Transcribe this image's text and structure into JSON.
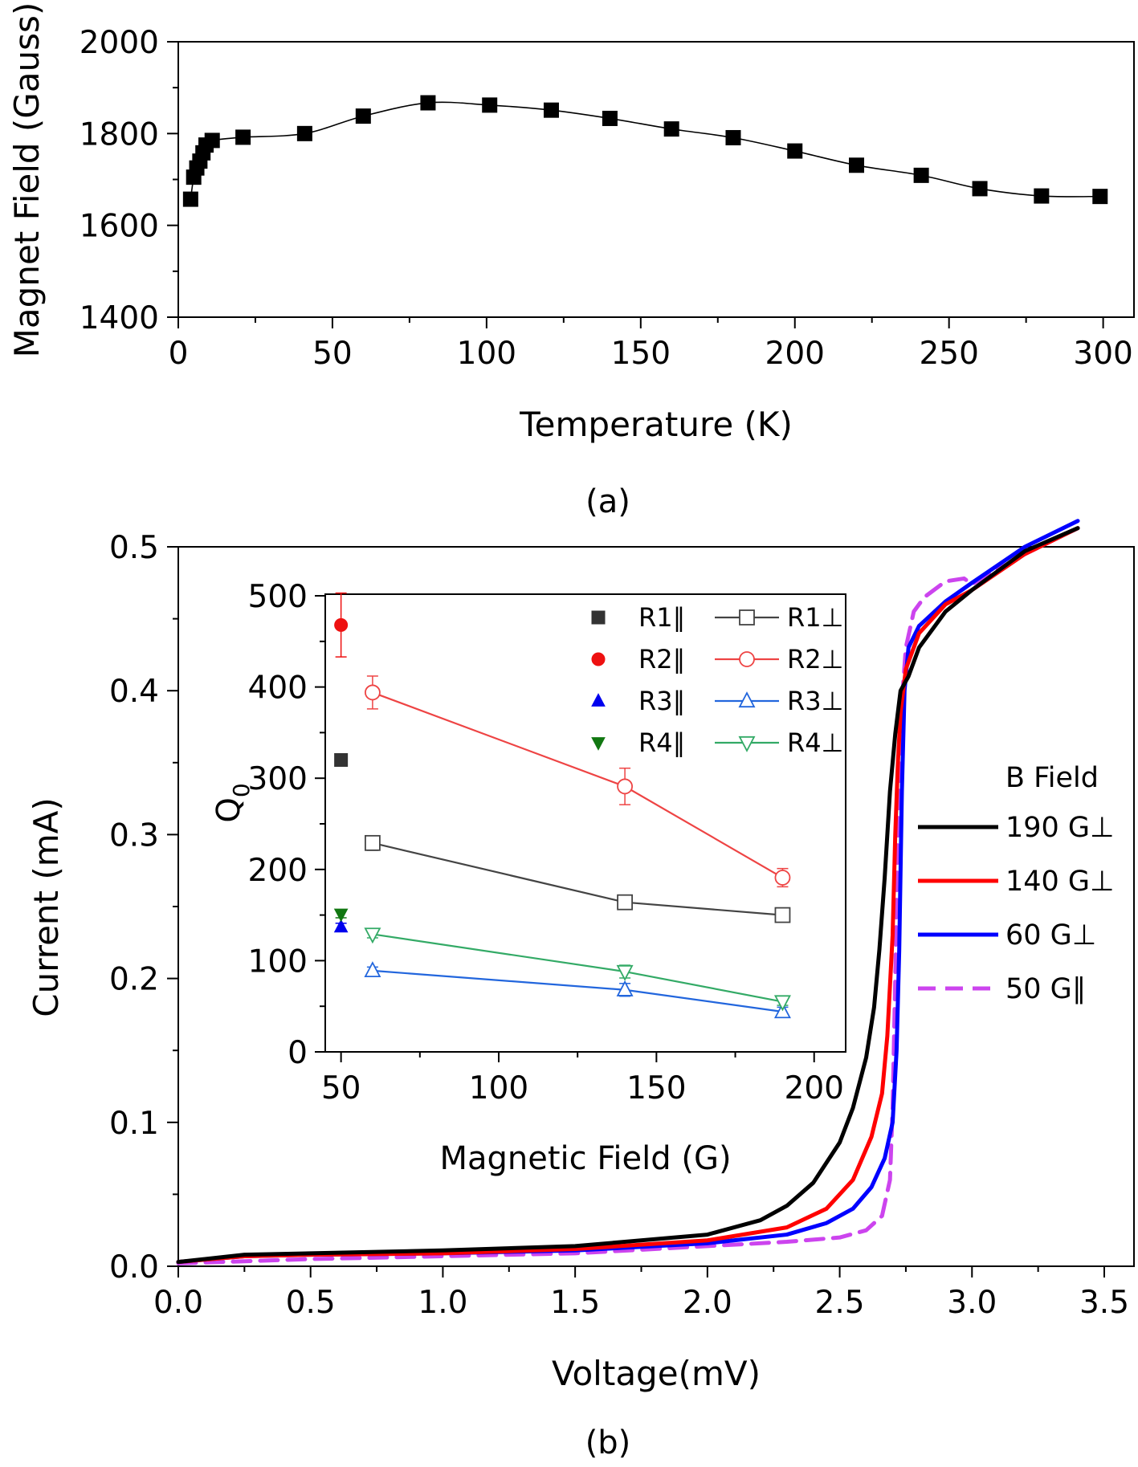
{
  "chart_data": [
    {
      "type": "line",
      "panel_label": "(a)",
      "title": "",
      "xlabel": "Temperature (K)",
      "ylabel": "Magnet Field (Gauss)",
      "xlim": [
        0,
        310
      ],
      "ylim": [
        1400,
        2000
      ],
      "xticks": [
        0,
        50,
        100,
        150,
        200,
        250,
        300
      ],
      "yticks": [
        1400,
        1600,
        1800,
        2000
      ],
      "grid": false,
      "series": [
        {
          "name": "",
          "marker": "square",
          "color": "#000000",
          "x": [
            4,
            5,
            6,
            7,
            8,
            9,
            11,
            21,
            41,
            60,
            81,
            101,
            121,
            140,
            160,
            180,
            200,
            220,
            241,
            260,
            280,
            299
          ],
          "y": [
            1657,
            1705,
            1725,
            1740,
            1758,
            1775,
            1785,
            1792,
            1800,
            1838,
            1867,
            1862,
            1851,
            1833,
            1810,
            1791,
            1762,
            1731,
            1709,
            1680,
            1664,
            1663
          ]
        }
      ]
    },
    {
      "type": "line",
      "panel_label": "(b)",
      "title": "",
      "xlabel": "Voltage(mV)",
      "ylabel": "Current (mA)",
      "xlim": [
        0,
        3.5
      ],
      "ylim": [
        0,
        0.5
      ],
      "xticks": [
        "0.0",
        "0.5",
        "1.0",
        "1.5",
        "2.0",
        "2.5",
        "3.0",
        "3.5"
      ],
      "yticks": [
        "0.0",
        "0.1",
        "0.2",
        "0.3",
        "0.4",
        "0.5"
      ],
      "legend_title": "B Field",
      "legend_position": "right",
      "series": [
        {
          "name": "190 G⊥",
          "color": "#000000",
          "dash": "solid",
          "x": [
            0,
            0.25,
            0.5,
            1.0,
            1.5,
            2.0,
            2.2,
            2.3,
            2.4,
            2.5,
            2.55,
            2.6,
            2.63,
            2.65,
            2.67,
            2.69,
            2.71,
            2.73,
            2.76,
            2.8,
            2.9,
            3.0,
            3.2,
            3.4
          ],
          "y": [
            0.003,
            0.008,
            0.009,
            0.011,
            0.014,
            0.022,
            0.032,
            0.042,
            0.058,
            0.086,
            0.11,
            0.145,
            0.18,
            0.22,
            0.27,
            0.33,
            0.37,
            0.4,
            0.41,
            0.43,
            0.455,
            0.47,
            0.497,
            0.513
          ]
        },
        {
          "name": "140 G⊥",
          "color": "#ff0000",
          "dash": "solid",
          "x": [
            0,
            0.25,
            0.5,
            1.0,
            1.5,
            2.0,
            2.3,
            2.45,
            2.55,
            2.62,
            2.66,
            2.68,
            2.7,
            2.71,
            2.72,
            2.73,
            2.75,
            2.8,
            2.9,
            3.0,
            3.2,
            3.4
          ],
          "y": [
            0.003,
            0.007,
            0.008,
            0.009,
            0.012,
            0.018,
            0.027,
            0.04,
            0.06,
            0.09,
            0.12,
            0.16,
            0.23,
            0.3,
            0.35,
            0.385,
            0.415,
            0.44,
            0.46,
            0.47,
            0.495,
            0.513
          ]
        },
        {
          "name": "60 G⊥",
          "color": "#0000ff",
          "dash": "solid",
          "x": [
            0,
            0.25,
            0.5,
            1.0,
            1.5,
            2.0,
            2.3,
            2.45,
            2.55,
            2.62,
            2.67,
            2.7,
            2.715,
            2.725,
            2.735,
            2.745,
            2.76,
            2.8,
            2.9,
            3.0,
            3.2,
            3.4
          ],
          "y": [
            0.003,
            0.007,
            0.008,
            0.009,
            0.011,
            0.016,
            0.022,
            0.03,
            0.04,
            0.055,
            0.075,
            0.1,
            0.15,
            0.22,
            0.33,
            0.4,
            0.43,
            0.445,
            0.462,
            0.475,
            0.5,
            0.518
          ]
        },
        {
          "name": "50 G∥",
          "color": "#cc44ee",
          "dash": "dashed",
          "x": [
            0,
            0.5,
            1.0,
            1.5,
            2.0,
            2.3,
            2.5,
            2.6,
            2.66,
            2.69,
            2.7,
            2.71,
            2.72,
            2.73,
            2.75,
            2.78,
            2.82,
            2.9,
            2.97,
            3.0,
            3.2,
            3.4
          ],
          "y": [
            0.002,
            0.005,
            0.007,
            0.009,
            0.014,
            0.017,
            0.02,
            0.025,
            0.035,
            0.06,
            0.11,
            0.2,
            0.3,
            0.38,
            0.43,
            0.455,
            0.465,
            0.476,
            0.478,
            0.474,
            0.495,
            0.513
          ]
        }
      ]
    },
    {
      "type": "line",
      "panel_label": "inset",
      "title": "",
      "xlabel": "Magnetic Field (G)",
      "ylabel": "Q",
      "ylabel_subscript": "0",
      "xlim": [
        45,
        210
      ],
      "ylim": [
        0,
        500
      ],
      "xticks": [
        50,
        100,
        150,
        200
      ],
      "yticks": [
        0,
        100,
        200,
        300,
        400,
        500
      ],
      "legend_position": "top",
      "series": [
        {
          "name": "R1∥",
          "kind": "parallel",
          "marker": "square",
          "filled": true,
          "color": "#333333",
          "x": [
            50
          ],
          "y": [
            320
          ],
          "err": [
            6
          ]
        },
        {
          "name": "R2∥",
          "kind": "parallel",
          "marker": "circle",
          "filled": true,
          "color": "#ee1111",
          "x": [
            50
          ],
          "y": [
            468
          ],
          "err": [
            35
          ]
        },
        {
          "name": "R3∥",
          "kind": "parallel",
          "marker": "triangle-up",
          "filled": true,
          "color": "#0000ee",
          "x": [
            50
          ],
          "y": [
            137
          ],
          "err": [
            4
          ]
        },
        {
          "name": "R4∥",
          "kind": "parallel",
          "marker": "triangle-down",
          "filled": true,
          "color": "#117711",
          "x": [
            50
          ],
          "y": [
            151
          ],
          "err": [
            4
          ]
        },
        {
          "name": "R1⊥",
          "kind": "perp",
          "marker": "square",
          "filled": false,
          "color": "#444444",
          "x": [
            60,
            140,
            190
          ],
          "y": [
            229,
            164,
            150
          ],
          "err": [
            8,
            4,
            4
          ]
        },
        {
          "name": "R2⊥",
          "kind": "perp",
          "marker": "circle",
          "filled": false,
          "color": "#ee4444",
          "x": [
            60,
            140,
            190
          ],
          "y": [
            394,
            291,
            191
          ],
          "err": [
            18,
            20,
            10
          ]
        },
        {
          "name": "R3⊥",
          "kind": "perp",
          "marker": "triangle-up",
          "filled": false,
          "color": "#2266dd",
          "x": [
            60,
            140,
            190
          ],
          "y": [
            89,
            68,
            44
          ],
          "err": [
            4,
            7,
            5
          ]
        },
        {
          "name": "R4⊥",
          "kind": "perp",
          "marker": "triangle-down",
          "filled": false,
          "color": "#33aa66",
          "x": [
            60,
            140,
            190
          ],
          "y": [
            129,
            88,
            55
          ],
          "err": [
            4,
            7,
            4
          ]
        }
      ]
    }
  ]
}
